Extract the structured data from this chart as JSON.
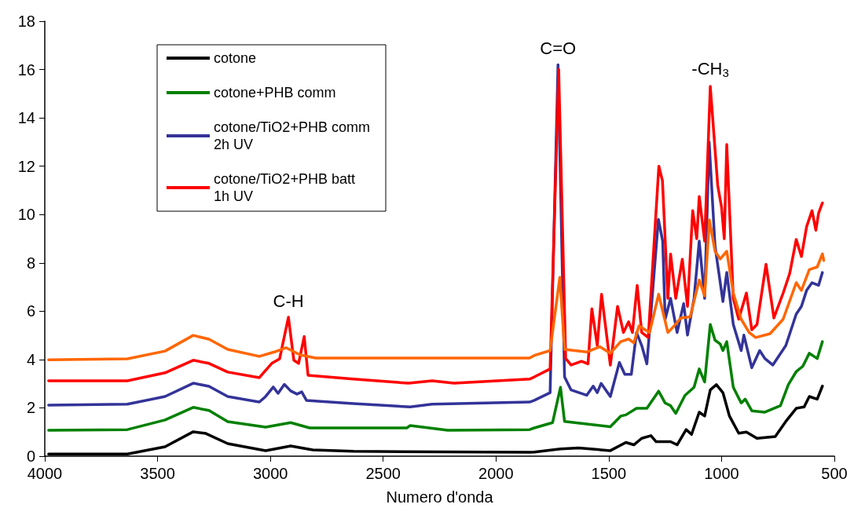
{
  "chart_data": {
    "type": "line",
    "xlabel": "Numero d'onda",
    "xlim": [
      4000,
      500
    ],
    "xticks": [
      4000,
      3500,
      3000,
      2500,
      2000,
      1500,
      1000,
      500
    ],
    "ylim": [
      0,
      18
    ],
    "yticks": [
      0,
      2,
      4,
      6,
      8,
      10,
      12,
      14,
      16,
      18
    ],
    "grid": false,
    "legend": "top left",
    "marker": "none",
    "line_style": "solid",
    "annotations": [
      {
        "text": "C-H",
        "x": 2920,
        "y": 5.75
      },
      {
        "text": "C=O",
        "x": 1725,
        "y": 16.2
      },
      {
        "text": "-CH$_{3}$",
        "x": 1050,
        "y": 15.3
      }
    ],
    "series": [
      {
        "name": "cotone",
        "color": "#000000",
        "x": [
          3983,
          3634,
          3467,
          3342,
          3286,
          3189,
          3021,
          2910,
          2812,
          2632,
          1851,
          1830,
          1714,
          1633,
          1493,
          1424,
          1389,
          1354,
          1313,
          1290,
          1226,
          1197,
          1157,
          1133,
          1099,
          1075,
          1050,
          1023,
          994,
          965,
          924,
          890,
          843,
          762,
          715,
          669,
          634,
          611,
          576,
          553
        ],
        "values": [
          0.09,
          0.09,
          0.39,
          1.01,
          0.94,
          0.52,
          0.23,
          0.42,
          0.26,
          0.2,
          0.16,
          0.17,
          0.3,
          0.34,
          0.23,
          0.57,
          0.47,
          0.74,
          0.85,
          0.6,
          0.6,
          0.47,
          1.1,
          0.9,
          1.82,
          1.66,
          2.74,
          2.96,
          2.63,
          1.66,
          0.95,
          1.0,
          0.74,
          0.81,
          1.44,
          1.98,
          2.04,
          2.47,
          2.36,
          2.9
        ]
      },
      {
        "name": "cotone+PHB comm",
        "color": "#008000",
        "x": [
          3983,
          3634,
          3467,
          3342,
          3272,
          3189,
          3021,
          2910,
          2826,
          2395,
          2380,
          2213,
          1851,
          1830,
          1749,
          1714,
          1696,
          1598,
          1493,
          1447,
          1424,
          1377,
          1331,
          1279,
          1250,
          1226,
          1203,
          1162,
          1122,
          1099,
          1075,
          1050,
          1029,
          1006,
          994,
          977,
          948,
          913,
          895,
          866,
          808,
          739,
          704,
          669,
          640,
          611,
          576,
          553
        ],
        "values": [
          1.07,
          1.1,
          1.5,
          2.02,
          1.89,
          1.43,
          1.2,
          1.39,
          1.17,
          1.17,
          1.27,
          1.07,
          1.1,
          1.17,
          1.39,
          2.85,
          1.44,
          1.33,
          1.22,
          1.66,
          1.71,
          1.98,
          1.98,
          2.69,
          2.2,
          2.09,
          1.77,
          2.52,
          2.85,
          3.61,
          3.07,
          5.45,
          4.8,
          4.64,
          4.37,
          4.74,
          2.85,
          2.2,
          2.36,
          1.88,
          1.82,
          2.09,
          2.96,
          3.5,
          3.72,
          4.26,
          4.04,
          4.74
        ]
      },
      {
        "name": "cotone/TiO2+PHB comm 2h UV",
        "color": "#333399",
        "x": [
          3983,
          3634,
          3467,
          3342,
          3272,
          3189,
          3049,
          3021,
          2987,
          2966,
          2938,
          2910,
          2882,
          2861,
          2840,
          2632,
          2381,
          2283,
          1851,
          1830,
          1760,
          1725,
          1696,
          1667,
          1598,
          1569,
          1551,
          1534,
          1493,
          1453,
          1429,
          1400,
          1377,
          1354,
          1331,
          1280,
          1261,
          1250,
          1226,
          1197,
          1168,
          1151,
          1122,
          1099,
          1075,
          1055,
          1029,
          994,
          977,
          948,
          913,
          901,
          866,
          831,
          808,
          773,
          715,
          669,
          646,
          623,
          599,
          570,
          553
        ],
        "values": [
          2.11,
          2.15,
          2.47,
          3.02,
          2.89,
          2.47,
          2.24,
          2.47,
          2.86,
          2.6,
          2.97,
          2.7,
          2.57,
          2.66,
          2.31,
          2.18,
          2.04,
          2.15,
          2.24,
          2.31,
          2.63,
          16.2,
          3.28,
          2.74,
          2.52,
          2.9,
          2.63,
          3.01,
          2.47,
          3.88,
          3.39,
          3.39,
          5.12,
          4.58,
          3.82,
          9.8,
          8.9,
          5.67,
          6.53,
          5.12,
          6.31,
          5.01,
          6.53,
          8.9,
          6.53,
          13.0,
          8.7,
          6.4,
          7.6,
          5.45,
          4.37,
          5.01,
          3.66,
          4.37,
          4.04,
          3.77,
          4.58,
          5.88,
          6.2,
          6.86,
          7.18,
          7.07,
          7.6
        ]
      },
      {
        "name": "cotone/TiO2+PHB batt 1h UV",
        "color": "#ff0000",
        "x": [
          3983,
          3634,
          3467,
          3342,
          3272,
          3189,
          3049,
          2994,
          2959,
          2920,
          2896,
          2875,
          2850,
          2833,
          2632,
          2388,
          2283,
          2186,
          1851,
          1830,
          1760,
          1722,
          1691,
          1667,
          1621,
          1592,
          1575,
          1551,
          1532,
          1493,
          1461,
          1435,
          1412,
          1395,
          1374,
          1354,
          1325,
          1278,
          1262,
          1238,
          1226,
          1203,
          1174,
          1151,
          1128,
          1110,
          1099,
          1075,
          1050,
          1041,
          1017,
          1000,
          988,
          977,
          948,
          924,
          890,
          866,
          843,
          803,
          768,
          727,
          698,
          669,
          646,
          623,
          599,
          582,
          570,
          553
        ],
        "values": [
          3.12,
          3.12,
          3.45,
          3.97,
          3.84,
          3.48,
          3.25,
          3.84,
          4.03,
          5.75,
          3.97,
          3.84,
          4.95,
          3.35,
          3.19,
          3.02,
          3.12,
          3.02,
          3.19,
          3.28,
          3.61,
          16.0,
          4.04,
          3.77,
          3.93,
          3.82,
          6.1,
          4.58,
          6.7,
          3.77,
          6.2,
          5.12,
          5.56,
          5.12,
          7.07,
          5.12,
          4.91,
          12.0,
          11.4,
          6.53,
          8.37,
          6.53,
          8.15,
          6.2,
          10.16,
          9.0,
          10.75,
          8.9,
          15.3,
          14.2,
          11.2,
          10.3,
          9.0,
          12.9,
          6.53,
          5.67,
          6.75,
          5.23,
          5.45,
          7.94,
          5.72,
          6.75,
          7.56,
          8.97,
          8.26,
          9.5,
          10.16,
          9.35,
          10.05,
          10.48
        ]
      },
      {
        "color": "#ff6600",
        "x": [
          3983,
          3634,
          3467,
          3342,
          3272,
          3189,
          3049,
          2980,
          2931,
          2868,
          2799,
          1851,
          1830,
          1760,
          1717,
          1696,
          1598,
          1540,
          1493,
          1447,
          1412,
          1389,
          1366,
          1319,
          1279,
          1238,
          1215,
          1180,
          1139,
          1099,
          1075,
          1054,
          1029,
          1006,
          977,
          948,
          913,
          878,
          849,
          785,
          727,
          669,
          646,
          611,
          576,
          553,
          547
        ],
        "values": [
          3.99,
          4.03,
          4.35,
          5.0,
          4.84,
          4.42,
          4.13,
          4.32,
          4.49,
          4.19,
          4.06,
          4.06,
          4.17,
          4.37,
          7.4,
          4.42,
          4.31,
          4.53,
          4.26,
          4.74,
          4.85,
          4.69,
          5.39,
          5.12,
          6.7,
          5.12,
          5.34,
          5.72,
          5.77,
          7.29,
          6.64,
          9.78,
          8.48,
          8.16,
          8.48,
          6.75,
          5.67,
          5.12,
          4.91,
          5.07,
          5.67,
          7.18,
          6.86,
          7.72,
          7.83,
          8.37,
          8.1
        ]
      }
    ]
  }
}
